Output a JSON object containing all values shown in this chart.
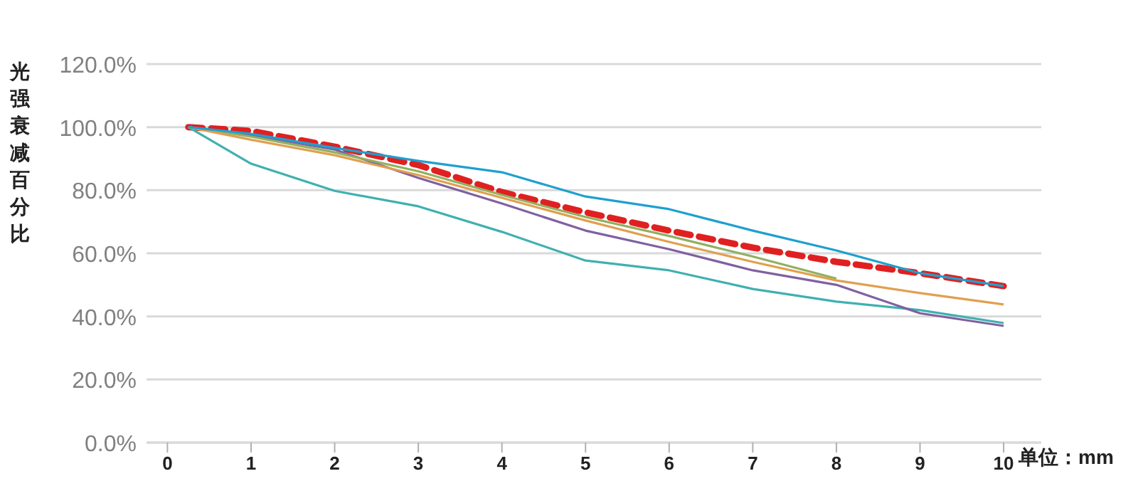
{
  "chart_data": {
    "type": "line",
    "ylabel": "光强衰减百分比",
    "xlabel": "单位：mm",
    "x": [
      0.25,
      1,
      2,
      3,
      4,
      5,
      6,
      7,
      8,
      9,
      10
    ],
    "xlim": [
      -0.25,
      10.45
    ],
    "xticks": [
      0,
      1,
      2,
      3,
      4,
      5,
      6,
      7,
      8,
      9,
      10
    ],
    "ylim": [
      0,
      120
    ],
    "yticks": [
      {
        "value": 0,
        "label": "0.0%"
      },
      {
        "value": 20,
        "label": "20.0%"
      },
      {
        "value": 40,
        "label": "40.0%"
      },
      {
        "value": 60,
        "label": "60.0%"
      },
      {
        "value": 80,
        "label": "80.0%"
      },
      {
        "value": 100,
        "label": "100.0%"
      },
      {
        "value": 120,
        "label": "120.0%"
      }
    ],
    "grid": "y",
    "marker": "none",
    "series": [
      {
        "color": "#e02020",
        "line_style": "dashed",
        "values": [
          100,
          98.8,
          93.8,
          88,
          79.4,
          73,
          67.2,
          61.8,
          57.3,
          53.7,
          49.6
        ]
      },
      {
        "color": "#40b0b0",
        "values": [
          100,
          88.4,
          79.8,
          74.9,
          66.8,
          57.7,
          54.6,
          48.7,
          44.7,
          42,
          37.9
        ]
      },
      {
        "color": "#8060a0",
        "values": [
          100,
          97.4,
          92.9,
          83.9,
          75.8,
          67.2,
          61.3,
          54.6,
          50,
          41,
          37
        ]
      },
      {
        "color": "#90b060",
        "values": [
          100,
          97,
          92,
          86,
          78.5,
          71.5,
          65.5,
          59,
          52,
          null,
          null
        ]
      },
      {
        "color": "#e0a050",
        "values": [
          100,
          96,
          91.1,
          84.8,
          77.6,
          70.4,
          63.6,
          57.3,
          51.4,
          47.4,
          43.8
        ]
      },
      {
        "color": "#1ea0d0",
        "values": [
          100,
          97.9,
          93.4,
          89.3,
          85.7,
          78,
          74,
          67.2,
          60.9,
          53.7,
          49.6
        ]
      }
    ]
  }
}
